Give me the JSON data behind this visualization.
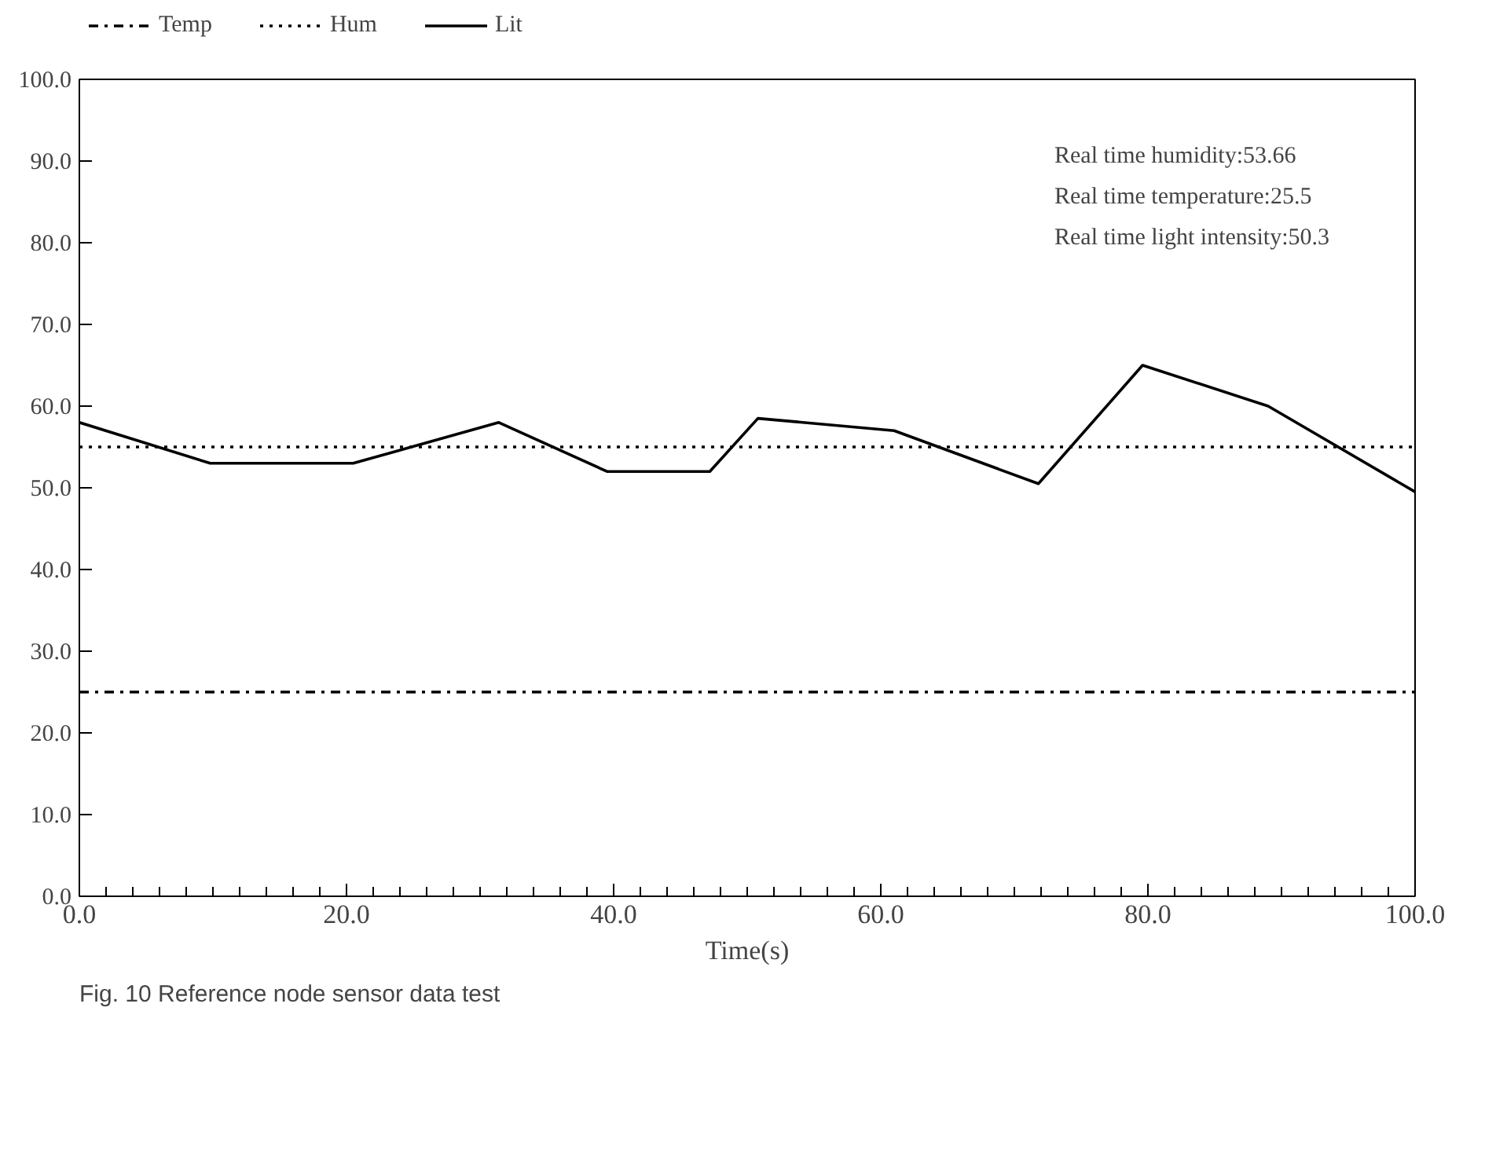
{
  "chart_data": {
    "type": "line",
    "xlabel": "Time(s)",
    "xlim": [
      0,
      100
    ],
    "xticks": [
      {
        "value": 0,
        "label": "0.0"
      },
      {
        "value": 20,
        "label": "20.0"
      },
      {
        "value": 40,
        "label": "40.0"
      },
      {
        "value": 60,
        "label": "60.0"
      },
      {
        "value": 80,
        "label": "80.0"
      },
      {
        "value": 100,
        "label": "100.0"
      }
    ],
    "ylim": [
      0,
      100
    ],
    "yticks": [
      {
        "value": 0,
        "label": "0.0"
      },
      {
        "value": 10,
        "label": "10.0"
      },
      {
        "value": 20,
        "label": "20.0"
      },
      {
        "value": 30,
        "label": "30.0"
      },
      {
        "value": 40,
        "label": "40.0"
      },
      {
        "value": 50,
        "label": "50.0"
      },
      {
        "value": 60,
        "label": "60.0"
      },
      {
        "value": 70,
        "label": "70.0"
      },
      {
        "value": 80,
        "label": "80.0"
      },
      {
        "value": 90,
        "label": "90.0"
      },
      {
        "value": 100,
        "label": "100.0"
      }
    ],
    "grid": false,
    "legend": "top left",
    "series": [
      {
        "name": "Temp",
        "color": "#000000",
        "line_style": "dashdot",
        "x": [
          0,
          100
        ],
        "values": [
          25,
          25
        ]
      },
      {
        "name": "Hum",
        "color": "#000000",
        "line_style": "dotted",
        "x": [
          0,
          100
        ],
        "values": [
          55,
          55
        ]
      },
      {
        "name": "Lit",
        "color": "#000000",
        "line_style": "solid",
        "x": [
          0,
          9.8,
          20.5,
          31.4,
          39.5,
          47.2,
          50.8,
          61,
          71.8,
          79.6,
          89,
          100
        ],
        "values": [
          58,
          53,
          53,
          58,
          52,
          52,
          58.5,
          57,
          50.5,
          65,
          60,
          49.5
        ]
      }
    ],
    "annotations": [
      "Real time humidity:53.66",
      "Real time temperature:25.5",
      "Real time light intensity:50.3",
      "Fig. 10 Reference node sensor data test"
    ]
  }
}
